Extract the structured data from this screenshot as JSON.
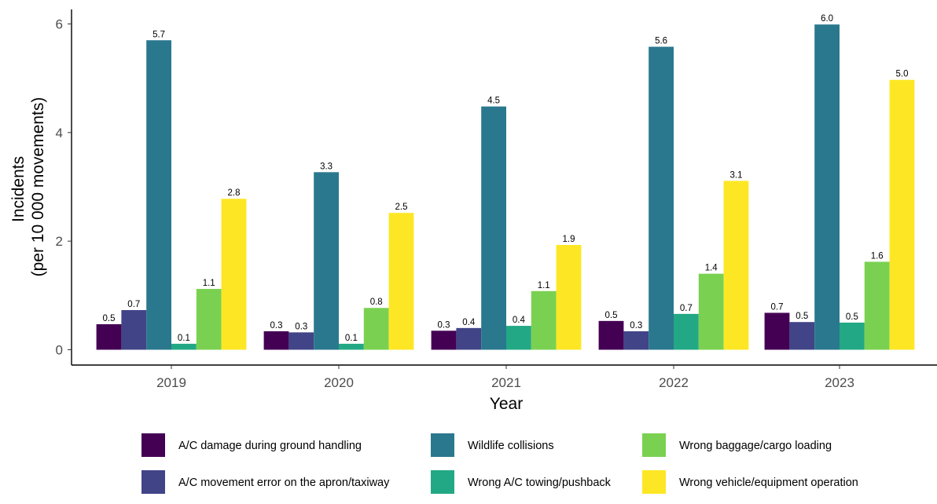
{
  "chart_data": {
    "type": "bar",
    "xlabel": "Year",
    "ylabel_lines": [
      "Incidents",
      "(per 10 000 movements)"
    ],
    "ylim": [
      0,
      6.2
    ],
    "yticks": [
      "0",
      "2",
      "4",
      "6"
    ],
    "ytick_values": [
      0,
      2,
      4,
      6
    ],
    "categories": [
      "2019",
      "2020",
      "2021",
      "2022",
      "2023"
    ],
    "grid": false,
    "legend_position": "bottom",
    "series": [
      {
        "name": "A/C damage during ground handling",
        "color": "#440154",
        "values": [
          0.47,
          0.34,
          0.35,
          0.53,
          0.68
        ],
        "labels": [
          "0.5",
          "0.3",
          "0.3",
          "0.5",
          "0.7"
        ]
      },
      {
        "name": "A/C movement error on the apron/taxiway",
        "color": "#414487",
        "values": [
          0.73,
          0.32,
          0.4,
          0.34,
          0.51
        ],
        "labels": [
          "0.7",
          "0.3",
          "0.4",
          "0.3",
          "0.5"
        ]
      },
      {
        "name": "Wildlife collisions",
        "color": "#2a788e",
        "values": [
          5.7,
          3.27,
          4.48,
          5.58,
          5.99
        ],
        "labels": [
          "5.7",
          "3.3",
          "4.5",
          "5.6",
          "6.0"
        ]
      },
      {
        "name": "Wrong A/C towing/pushback",
        "color": "#22a884",
        "values": [
          0.11,
          0.11,
          0.44,
          0.66,
          0.5
        ],
        "labels": [
          "0.1",
          "0.1",
          "0.4",
          "0.7",
          "0.5"
        ]
      },
      {
        "name": "Wrong baggage/cargo loading",
        "color": "#7ad151",
        "values": [
          1.12,
          0.77,
          1.08,
          1.4,
          1.62
        ],
        "labels": [
          "1.1",
          "0.8",
          "1.1",
          "1.4",
          "1.6"
        ]
      },
      {
        "name": "Wrong vehicle/equipment operation",
        "color": "#fde725",
        "values": [
          2.78,
          2.52,
          1.93,
          3.11,
          4.97
        ],
        "labels": [
          "2.8",
          "2.5",
          "1.9",
          "3.1",
          "5.0"
        ]
      }
    ]
  }
}
